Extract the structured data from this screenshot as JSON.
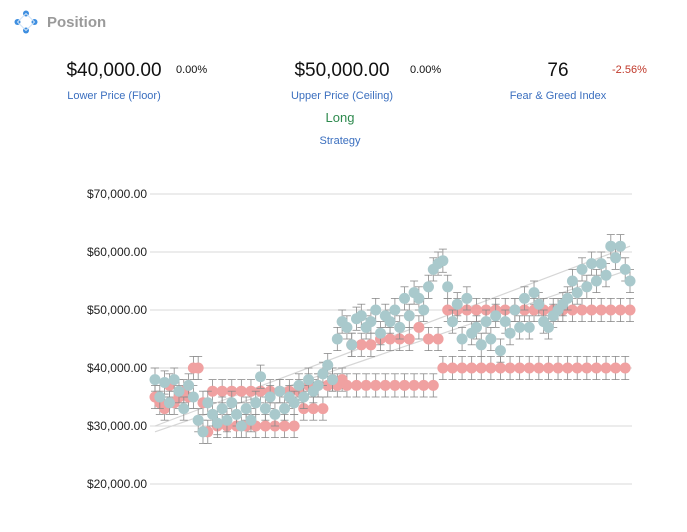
{
  "header": {
    "title": "Position",
    "icon": "diamond-dots-icon"
  },
  "stats": {
    "floor": {
      "value": "$40,000.00",
      "change": "0.00%",
      "label": "Lower Price (Floor)"
    },
    "ceiling": {
      "value": "$50,000.00",
      "change": "0.00%",
      "label": "Upper Price (Ceiling)"
    },
    "fear_greed": {
      "value": "76",
      "change": "-2.56%",
      "label": "Fear & Greed Index"
    },
    "strategy": {
      "value": "Long",
      "label": "Strategy"
    }
  },
  "colors": {
    "title_gray": "#9a9a9a",
    "label_blue": "#3b6fbf",
    "strategy_green": "#2e8a4e",
    "negative_red": "#c0392b",
    "series_price": "#a9c9cc",
    "series_bounds": "#f0a1a1"
  },
  "chart_data": {
    "type": "scatter",
    "ytick_labels": [
      "$70,000.00",
      "$60,000.00",
      "$50,000.00",
      "$40,000.00",
      "$30,000.00",
      "$20,000.00"
    ],
    "yticks": [
      70000,
      60000,
      50000,
      40000,
      30000,
      20000
    ],
    "ylim": [
      20000,
      70000
    ],
    "grid": true,
    "error_bars": true,
    "series": [
      {
        "color": "#a9c9cc",
        "values": [
          38000,
          35000,
          37500,
          34000,
          38000,
          36000,
          33000,
          37000,
          35000,
          31000,
          29000,
          34000,
          32000,
          30500,
          33000,
          31000,
          34000,
          32000,
          30000,
          33000,
          31000,
          34000,
          38500,
          33000,
          35000,
          32000,
          36000,
          33000,
          35000,
          34000,
          37000,
          35000,
          38000,
          36000,
          37000,
          39000,
          40500,
          38000,
          45000,
          48000,
          47000,
          44000,
          48500,
          49000,
          47000,
          48000,
          50000,
          46000,
          49000,
          48000,
          50000,
          47000,
          52000,
          49000,
          53000,
          52000,
          50000,
          54000,
          57000,
          58000,
          58500,
          54000,
          48000,
          51000,
          45000,
          52000,
          46000,
          47000,
          44000,
          48000,
          45000,
          49000,
          43000,
          48000,
          46000,
          50000,
          47000,
          52000,
          47000,
          53000,
          51000,
          48000,
          47000,
          49000,
          50000,
          51000,
          52000,
          55000,
          53000,
          57000,
          54000,
          58000,
          55000,
          58000,
          56000,
          61000,
          59000,
          61000,
          57000,
          55000
        ]
      },
      {
        "color": "#f0a1a1",
        "values": [
          35000,
          34000,
          33000,
          37000,
          34000,
          35000,
          36000,
          35000,
          40000,
          40000,
          34000,
          29000,
          36000,
          30000,
          36000,
          30000,
          36000,
          30000,
          36000,
          30000,
          36000,
          30000,
          36000,
          30000,
          36000,
          30000,
          36000,
          30000,
          36000,
          30000,
          36000,
          33000,
          37000,
          33000,
          37000,
          33000,
          37000,
          38000,
          37000,
          38000,
          37000,
          44000,
          37000,
          44000,
          37000,
          44000,
          37000,
          45000,
          37000,
          45000,
          37000,
          45000,
          37000,
          45000,
          37000,
          47000,
          37000,
          45000,
          37000,
          45000,
          40000,
          50000,
          40000,
          50000,
          40000,
          50000,
          40000,
          50000,
          40000,
          50000,
          40000,
          50000,
          40000,
          50000,
          40000,
          50000,
          40000,
          50000,
          40000,
          50000,
          40000,
          50000,
          40000,
          50000,
          40000,
          50000,
          40000,
          50000,
          40000,
          50000,
          40000,
          50000,
          40000,
          50000,
          40000,
          50000,
          40000,
          50000,
          40000,
          50000
        ]
      }
    ],
    "trend_lines": [
      {
        "from": [
          0,
          29000
        ],
        "to": [
          99,
          57000
        ]
      },
      {
        "from": [
          0,
          30000
        ],
        "to": [
          99,
          61000
        ]
      }
    ]
  }
}
